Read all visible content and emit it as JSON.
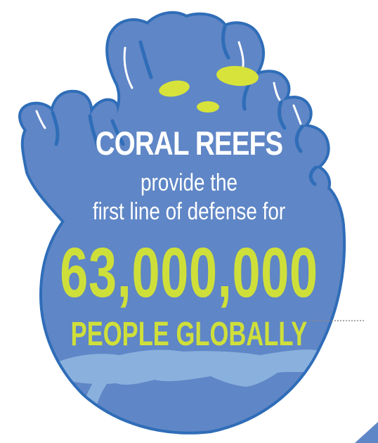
{
  "infographic": {
    "heading": "CORAL REEFS",
    "line_1": "provide the",
    "line_2": "first line of defense for",
    "number": "63,000,000",
    "people": "PEOPLE GLOBALLY"
  },
  "colors": {
    "coral_fill": "#5f86c6",
    "coral_outline": "#2f6db8",
    "diver_silhouette": "#8ab0dd",
    "highlight_text": "#cfdf3a",
    "heading_text": "#ffffff",
    "fish": "#d7e33b"
  }
}
